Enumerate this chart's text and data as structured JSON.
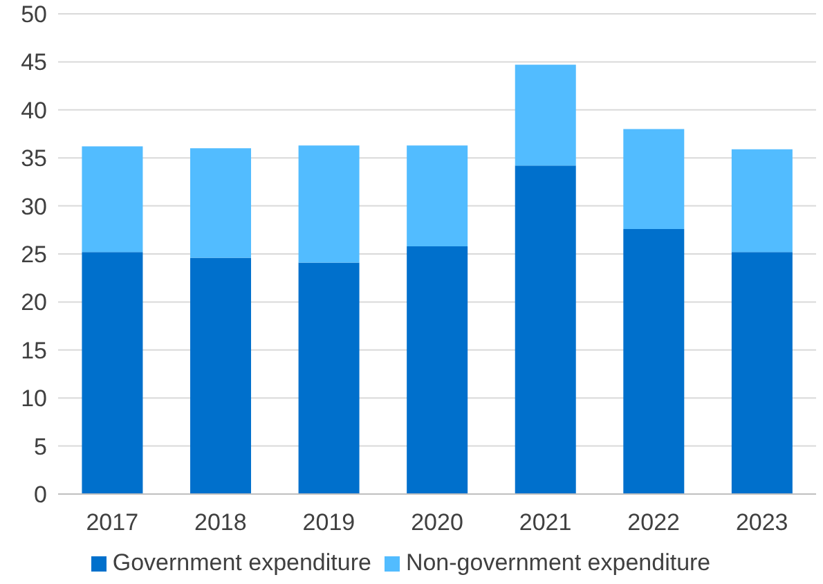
{
  "chart_data": {
    "type": "bar",
    "stacked": true,
    "categories": [
      "2017",
      "2018",
      "2019",
      "2020",
      "2021",
      "2022",
      "2023"
    ],
    "series": [
      {
        "name": "Government expenditure",
        "color": "#0070cc",
        "values": [
          25.2,
          24.6,
          24.1,
          25.8,
          34.2,
          27.6,
          25.2
        ]
      },
      {
        "name": "Non-government expenditure",
        "color": "#52bcff",
        "values": [
          11.0,
          11.4,
          12.2,
          10.5,
          10.5,
          10.4,
          10.7
        ]
      }
    ],
    "ylim": [
      0,
      50
    ],
    "yticks": [
      0,
      5,
      10,
      15,
      20,
      25,
      30,
      35,
      40,
      45,
      50
    ],
    "grid": "y",
    "legend": "bottom"
  }
}
